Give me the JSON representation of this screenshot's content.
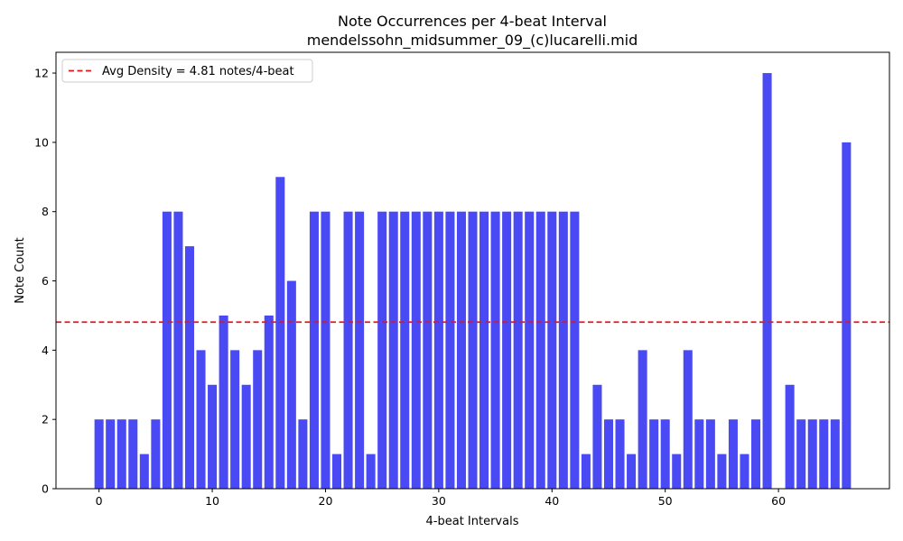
{
  "chart_data": {
    "type": "bar",
    "title": "Note Occurrences per 4-beat Interval",
    "subtitle": "mendelssohn_midsummer_09_(c)lucarelli.mid",
    "xlabel": "4-beat Intervals",
    "ylabel": "Note Count",
    "x": [
      0,
      1,
      2,
      3,
      4,
      5,
      6,
      7,
      8,
      9,
      10,
      11,
      12,
      13,
      14,
      15,
      16,
      17,
      18,
      19,
      20,
      21,
      22,
      23,
      24,
      25,
      26,
      27,
      28,
      29,
      30,
      31,
      32,
      33,
      34,
      35,
      36,
      37,
      38,
      39,
      40,
      41,
      42,
      43,
      44,
      45,
      46,
      47,
      48,
      49,
      50,
      51,
      52,
      53,
      54,
      55,
      56,
      57,
      58,
      59,
      60,
      61,
      62,
      63,
      64,
      65,
      66
    ],
    "values": [
      2,
      2,
      2,
      2,
      1,
      2,
      8,
      8,
      7,
      4,
      3,
      5,
      4,
      3,
      4,
      5,
      9,
      6,
      2,
      8,
      8,
      1,
      8,
      8,
      1,
      8,
      8,
      8,
      8,
      8,
      8,
      8,
      8,
      8,
      8,
      8,
      8,
      8,
      8,
      8,
      8,
      8,
      8,
      1,
      3,
      2,
      2,
      1,
      4,
      2,
      2,
      1,
      4,
      2,
      2,
      1,
      2,
      1,
      2,
      12,
      0,
      3,
      2,
      2,
      2,
      2,
      10
    ],
    "xlim": [
      -3.8,
      69.8
    ],
    "ylim": [
      0,
      12.6
    ],
    "xticks": [
      0,
      10,
      20,
      30,
      40,
      50,
      60
    ],
    "yticks": [
      0,
      2,
      4,
      6,
      8,
      10,
      12
    ],
    "bar_color": "#4a4af5",
    "reference_line": {
      "value": 4.81,
      "label": "Avg Density = 4.81 notes/4-beat",
      "color": "#e8141a",
      "style": "dashed"
    },
    "legend_position": "top-left",
    "grid": false
  }
}
